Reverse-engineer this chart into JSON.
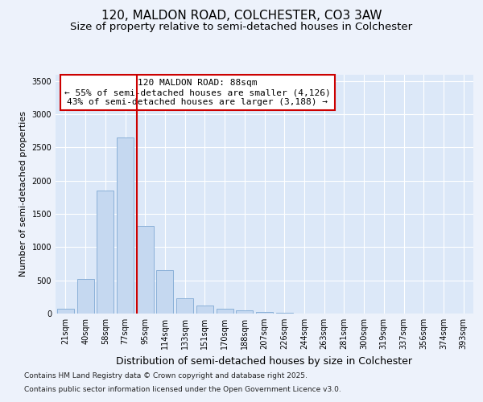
{
  "title1": "120, MALDON ROAD, COLCHESTER, CO3 3AW",
  "title2": "Size of property relative to semi-detached houses in Colchester",
  "xlabel": "Distribution of semi-detached houses by size in Colchester",
  "ylabel": "Number of semi-detached properties",
  "categories": [
    "21sqm",
    "40sqm",
    "58sqm",
    "77sqm",
    "95sqm",
    "114sqm",
    "133sqm",
    "151sqm",
    "170sqm",
    "188sqm",
    "207sqm",
    "226sqm",
    "244sqm",
    "263sqm",
    "281sqm",
    "300sqm",
    "319sqm",
    "337sqm",
    "356sqm",
    "374sqm",
    "393sqm"
  ],
  "values": [
    75,
    525,
    1850,
    2650,
    1325,
    650,
    225,
    125,
    75,
    50,
    25,
    10,
    5,
    3,
    2,
    1,
    1,
    0,
    0,
    0,
    0
  ],
  "bar_color": "#c5d8f0",
  "bar_edge_color": "#8ab0d8",
  "vline_color": "#cc0000",
  "vline_x_index": 4,
  "annotation_line1": "120 MALDON ROAD: 88sqm",
  "annotation_line2": "← 55% of semi-detached houses are smaller (4,126)",
  "annotation_line3": "43% of semi-detached houses are larger (3,188) →",
  "annotation_box_color": "#ffffff",
  "annotation_box_edge": "#cc0000",
  "ylim": [
    0,
    3600
  ],
  "yticks": [
    0,
    500,
    1000,
    1500,
    2000,
    2500,
    3000,
    3500
  ],
  "footnote1": "Contains HM Land Registry data © Crown copyright and database right 2025.",
  "footnote2": "Contains public sector information licensed under the Open Government Licence v3.0.",
  "background_color": "#edf2fb",
  "plot_bg_color": "#dce8f8",
  "grid_color": "#ffffff",
  "title_fontsize": 11,
  "subtitle_fontsize": 9.5,
  "ylabel_fontsize": 8,
  "xlabel_fontsize": 9,
  "tick_fontsize": 7,
  "annotation_fontsize": 8,
  "footnote_fontsize": 6.5
}
